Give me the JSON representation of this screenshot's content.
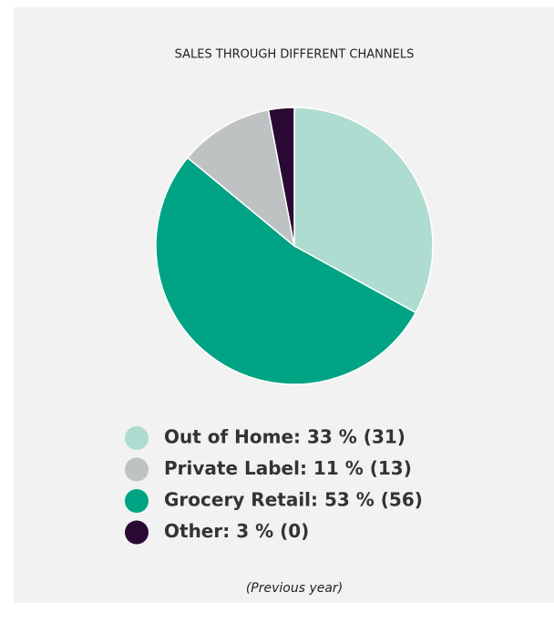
{
  "chart_data": {
    "type": "pie",
    "title": "SALES THROUGH DIFFERENT CHANNELS",
    "categories": [
      "Out of Home",
      "Grocery Retail",
      "Private Label",
      "Other"
    ],
    "values": [
      33,
      53,
      11,
      3
    ],
    "colors": [
      "#aedcd0",
      "#00a383",
      "#bfc2c3",
      "#2a0a35"
    ],
    "legend": [
      {
        "label": "Out of Home: 33 % (31)",
        "color": "#aedcd0"
      },
      {
        "label": "Private Label: 11 % (13)",
        "color": "#bfc2c3"
      },
      {
        "label": "Grocery Retail: 53 % (56)",
        "color": "#00a383"
      },
      {
        "label": "Other: 3 % (0)",
        "color": "#2a0a35"
      }
    ],
    "note": "(Previous year)"
  }
}
